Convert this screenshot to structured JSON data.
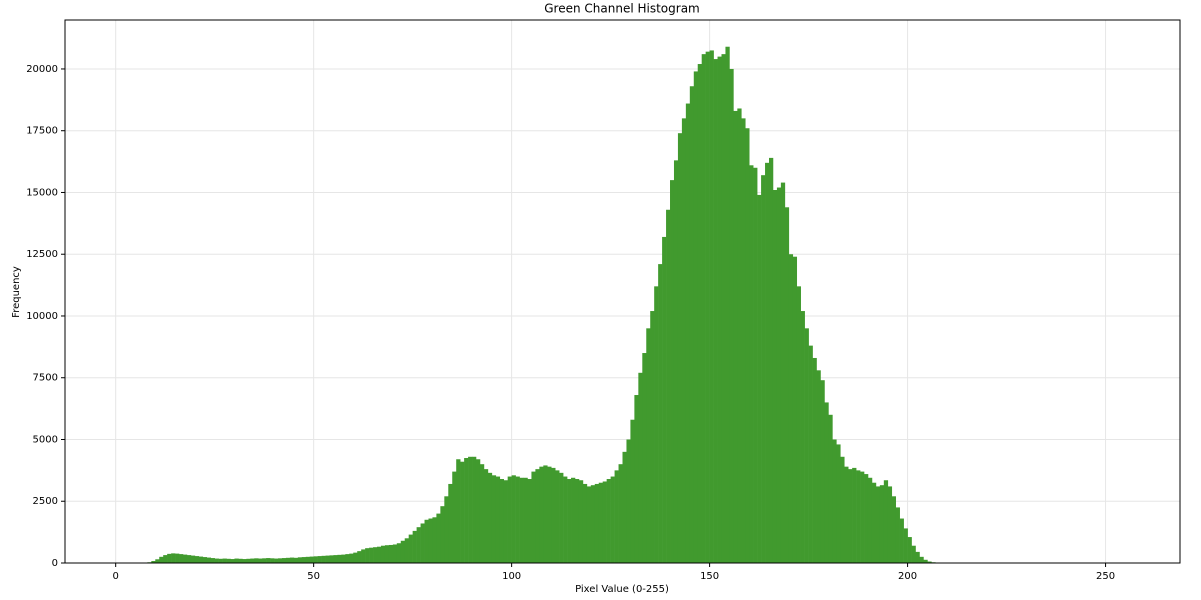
{
  "chart_data": {
    "type": "histogram",
    "title": "Green Channel Histogram",
    "x_label": "Pixel Value (0-255)",
    "y_label": "Frequency",
    "color": "#419a2e",
    "grid": true,
    "xlim": [
      -12.8,
      268.8
    ],
    "ylim": [
      0,
      21982
    ],
    "xticks": [
      0,
      50,
      100,
      150,
      200,
      250
    ],
    "yticks": [
      0,
      2500,
      5000,
      7500,
      10000,
      12500,
      15000,
      17500,
      20000
    ],
    "bins": [
      0,
      1,
      2,
      3,
      4,
      5,
      6,
      7,
      8,
      9,
      10,
      11,
      12,
      13,
      14,
      15,
      16,
      17,
      18,
      19,
      20,
      21,
      22,
      23,
      24,
      25,
      26,
      27,
      28,
      29,
      30,
      31,
      32,
      33,
      34,
      35,
      36,
      37,
      38,
      39,
      40,
      41,
      42,
      43,
      44,
      45,
      46,
      47,
      48,
      49,
      50,
      51,
      52,
      53,
      54,
      55,
      56,
      57,
      58,
      59,
      60,
      61,
      62,
      63,
      64,
      65,
      66,
      67,
      68,
      69,
      70,
      71,
      72,
      73,
      74,
      75,
      76,
      77,
      78,
      79,
      80,
      81,
      82,
      83,
      84,
      85,
      86,
      87,
      88,
      89,
      90,
      91,
      92,
      93,
      94,
      95,
      96,
      97,
      98,
      99,
      100,
      101,
      102,
      103,
      104,
      105,
      106,
      107,
      108,
      109,
      110,
      111,
      112,
      113,
      114,
      115,
      116,
      117,
      118,
      119,
      120,
      121,
      122,
      123,
      124,
      125,
      126,
      127,
      128,
      129,
      130,
      131,
      132,
      133,
      134,
      135,
      136,
      137,
      138,
      139,
      140,
      141,
      142,
      143,
      144,
      145,
      146,
      147,
      148,
      149,
      150,
      151,
      152,
      153,
      154,
      155,
      156,
      157,
      158,
      159,
      160,
      161,
      162,
      163,
      164,
      165,
      166,
      167,
      168,
      169,
      170,
      171,
      172,
      173,
      174,
      175,
      176,
      177,
      178,
      179,
      180,
      181,
      182,
      183,
      184,
      185,
      186,
      187,
      188,
      189,
      190,
      191,
      192,
      193,
      194,
      195,
      196,
      197,
      198,
      199,
      200,
      201,
      202,
      203,
      204,
      205,
      206,
      207,
      208,
      209,
      210,
      211,
      212,
      213,
      214,
      215,
      216,
      217,
      218,
      219,
      220,
      221,
      222,
      223,
      224,
      225,
      226,
      227,
      228,
      229,
      230,
      231,
      232,
      233,
      234,
      235,
      236,
      237,
      238,
      239,
      240,
      241,
      242,
      243,
      244,
      245,
      246,
      247,
      248,
      249,
      250,
      251,
      252,
      253,
      254,
      255,
      256
    ],
    "counts": [
      0,
      0,
      0,
      0,
      0,
      0,
      0,
      0,
      30,
      80,
      150,
      250,
      320,
      370,
      390,
      380,
      360,
      340,
      320,
      300,
      280,
      260,
      240,
      220,
      200,
      180,
      170,
      180,
      170,
      160,
      180,
      170,
      160,
      170,
      180,
      190,
      180,
      190,
      200,
      190,
      180,
      190,
      200,
      210,
      220,
      210,
      230,
      240,
      250,
      260,
      270,
      280,
      290,
      300,
      310,
      320,
      330,
      340,
      360,
      380,
      420,
      480,
      550,
      600,
      620,
      640,
      660,
      700,
      720,
      730,
      750,
      800,
      900,
      1000,
      1150,
      1300,
      1450,
      1600,
      1750,
      1800,
      1850,
      2000,
      2300,
      2700,
      3200,
      3700,
      4200,
      4100,
      4250,
      4300,
      4300,
      4200,
      4000,
      3800,
      3650,
      3550,
      3500,
      3400,
      3350,
      3500,
      3550,
      3500,
      3450,
      3450,
      3400,
      3700,
      3800,
      3900,
      3950,
      3900,
      3850,
      3750,
      3650,
      3500,
      3400,
      3450,
      3400,
      3350,
      3200,
      3100,
      3150,
      3200,
      3250,
      3300,
      3400,
      3500,
      3750,
      4000,
      4500,
      5000,
      5800,
      6800,
      7700,
      8500,
      9500,
      10200,
      11200,
      12100,
      13200,
      14300,
      15500,
      16300,
      17400,
      18000,
      18600,
      19300,
      19900,
      20200,
      20600,
      20700,
      20750,
      20400,
      20500,
      20600,
      20900,
      20000,
      18300,
      18400,
      18000,
      17600,
      16100,
      16000,
      14900,
      15700,
      16200,
      16400,
      15100,
      15200,
      15400,
      14400,
      12500,
      12400,
      11200,
      10200,
      9500,
      8800,
      8300,
      7800,
      7400,
      6500,
      6000,
      5000,
      4800,
      4300,
      3900,
      3800,
      3850,
      3750,
      3700,
      3600,
      3450,
      3250,
      3100,
      3150,
      3350,
      3100,
      2700,
      2250,
      1800,
      1400,
      1050,
      700,
      450,
      250,
      130,
      60,
      30,
      10,
      0,
      0,
      0,
      0,
      0,
      0,
      0,
      0,
      0,
      0,
      0,
      0,
      0,
      0,
      0,
      0,
      0,
      0,
      0,
      0,
      0,
      0,
      0,
      0,
      0,
      0,
      0,
      0,
      0,
      0,
      0,
      0,
      0,
      0,
      0,
      0,
      0,
      0,
      0,
      0,
      0,
      0,
      0,
      0,
      0,
      0,
      0,
      0
    ]
  }
}
